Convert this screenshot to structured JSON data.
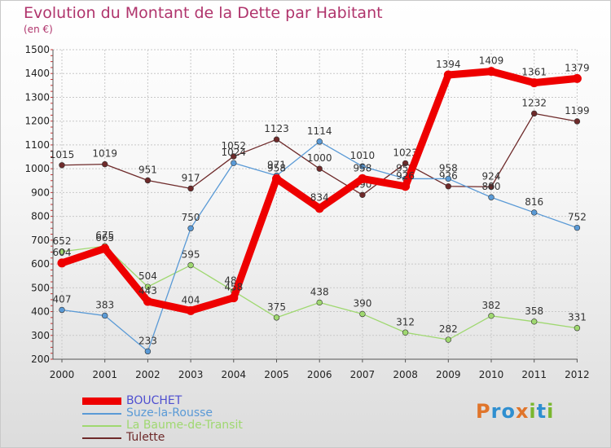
{
  "title": "Evolution du Montant de la Dette par Habitant",
  "unit": "(en €)",
  "logo": {
    "text": "Proxiti",
    "letters": [
      "P",
      "r",
      "o",
      "x",
      "i",
      "t",
      "i"
    ],
    "colors": [
      "#e0752b",
      "#2f8fd0",
      "#2f8fd0",
      "#e0752b",
      "#7ab72f",
      "#2f8fd0",
      "#7ab72f"
    ]
  },
  "chart_data": {
    "type": "line",
    "title": "Evolution du Montant de la Dette par Habitant",
    "ylabel": "(en €)",
    "xlabel": "",
    "ylim": [
      200,
      1500
    ],
    "yticks": [
      200,
      300,
      400,
      500,
      600,
      700,
      800,
      900,
      1000,
      1100,
      1200,
      1300,
      1400,
      1500
    ],
    "x": [
      "2000",
      "2001",
      "2002",
      "2003",
      "2004",
      "2005",
      "2006",
      "2007",
      "2008",
      "2009",
      "2010",
      "2011",
      "2012"
    ],
    "grid": true,
    "legend_position": "bottom-left",
    "series": [
      {
        "name": "Tulette",
        "color": "#6e2a2a",
        "thick": false,
        "values": [
          1015,
          1019,
          951,
          917,
          1052,
          1123,
          1000,
          890,
          1023,
          926,
          924,
          1232,
          1199
        ]
      },
      {
        "name": "La Baume-de-Transit",
        "color": "#9fd870",
        "thick": false,
        "values": [
          652,
          675,
          504,
          595,
          486,
          375,
          438,
          390,
          312,
          282,
          382,
          358,
          331
        ]
      },
      {
        "name": "Suze-la-Rousse",
        "color": "#5a9ad6",
        "thick": false,
        "values": [
          407,
          383,
          233,
          750,
          1024,
          971,
          1114,
          1010,
          958,
          958,
          880,
          816,
          752
        ]
      },
      {
        "name": "BOUCHET",
        "color": "#ee0000",
        "thick": true,
        "values": [
          604,
          665,
          443,
          404,
          458,
          958,
          834,
          958,
          926,
          1394,
          1409,
          1361,
          1379
        ]
      }
    ],
    "legend_order": [
      "BOUCHET",
      "Suze-la-Rousse",
      "La Baume-de-Transit",
      "Tulette"
    ]
  }
}
